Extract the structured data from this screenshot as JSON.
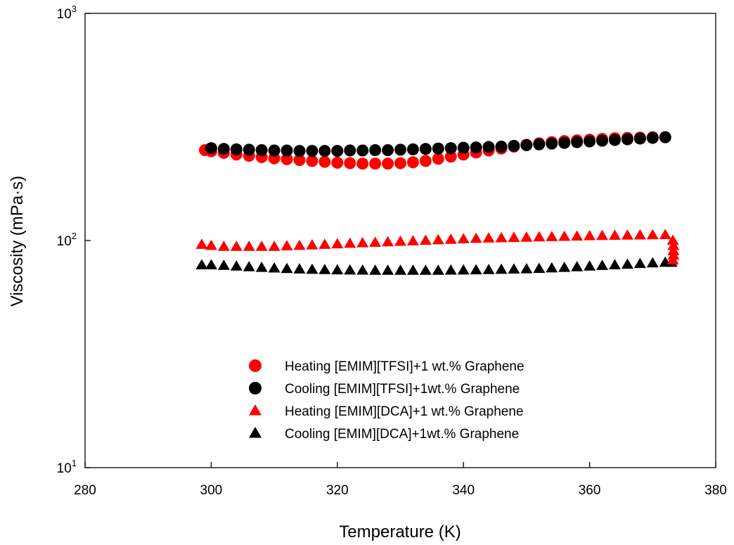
{
  "chart_data": {
    "type": "scatter",
    "xlabel": "Temperature (K)",
    "ylabel": "Viscosity (mPa·s)",
    "xlim": [
      280,
      380
    ],
    "ylim": [
      10,
      1000
    ],
    "y_scale": "log",
    "x_ticks": [
      "280",
      "300",
      "320",
      "340",
      "360",
      "380"
    ],
    "y_ticks": [
      {
        "base": "10",
        "exp": "1"
      },
      {
        "base": "10",
        "exp": "2"
      },
      {
        "base": "10",
        "exp": "3"
      }
    ],
    "grid": false,
    "legend_position": "bottom-center",
    "series": [
      {
        "name": "Heating [EMIM][TFSI]+1 wt.% Graphene",
        "marker": "circle",
        "color": "#ff0000",
        "x": [
          299,
          300,
          302,
          304,
          306,
          308,
          310,
          312,
          314,
          316,
          318,
          320,
          322,
          324,
          326,
          328,
          330,
          332,
          334,
          336,
          338,
          340,
          342,
          344,
          346,
          348,
          350,
          352,
          354,
          356,
          358,
          360,
          362,
          364,
          366,
          368,
          370,
          372
        ],
        "y": [
          250,
          247,
          243,
          239,
          236,
          233,
          230,
          228,
          226,
          224,
          222,
          220,
          219,
          218,
          218,
          218,
          219,
          221,
          224,
          229,
          234,
          239,
          244,
          249,
          254,
          259,
          264,
          268,
          271,
          274,
          276,
          278,
          280,
          282,
          283,
          284,
          285,
          285
        ]
      },
      {
        "name": "Cooling [EMIM][TFSI]+1wt.% Graphene",
        "marker": "circle",
        "color": "#000000",
        "x": [
          372,
          370,
          368,
          366,
          364,
          362,
          360,
          358,
          356,
          354,
          352,
          350,
          348,
          346,
          344,
          342,
          340,
          338,
          336,
          334,
          332,
          330,
          328,
          326,
          324,
          322,
          320,
          318,
          316,
          314,
          312,
          310,
          308,
          306,
          304,
          302,
          300
        ],
        "y": [
          285,
          283,
          281,
          279,
          277,
          275,
          273,
          271,
          269,
          267,
          265,
          263,
          261,
          259,
          258,
          257,
          256,
          255,
          254,
          253,
          252,
          251,
          250,
          250,
          249,
          249,
          248,
          248,
          248,
          248,
          249,
          249,
          250,
          251,
          252,
          253,
          255
        ]
      },
      {
        "name": "Heating [EMIM][DCA]+1 wt.% Graphene",
        "marker": "triangle",
        "color": "#ff0000",
        "x": [
          298.5,
          300,
          302,
          304,
          306,
          308,
          310,
          312,
          314,
          316,
          318,
          320,
          322,
          324,
          326,
          328,
          330,
          332,
          334,
          336,
          338,
          340,
          342,
          344,
          346,
          348,
          350,
          352,
          354,
          356,
          358,
          360,
          362,
          364,
          366,
          368,
          370,
          372
        ],
        "y": [
          96,
          95,
          94,
          94,
          94,
          94,
          94,
          94.5,
          95,
          95.5,
          96,
          96.5,
          97,
          97.5,
          98,
          98.5,
          99,
          99.5,
          100,
          100.5,
          101,
          101.5,
          102,
          102.3,
          102.6,
          102.9,
          103.2,
          103.5,
          103.8,
          104.1,
          104.4,
          104.7,
          105,
          105.2,
          105.4,
          105.6,
          105.8,
          106
        ]
      },
      {
        "name": "Cooling [EMIM][DCA]+1wt.% Graphene",
        "marker": "triangle",
        "color": "#000000",
        "x": [
          373,
          372,
          370,
          368,
          366,
          364,
          362,
          360,
          358,
          356,
          354,
          352,
          350,
          348,
          346,
          344,
          342,
          340,
          338,
          336,
          334,
          332,
          330,
          328,
          326,
          324,
          322,
          320,
          318,
          316,
          314,
          312,
          310,
          308,
          306,
          304,
          302,
          300,
          298.5
        ],
        "y": [
          80,
          80,
          79.5,
          79,
          78.5,
          78,
          77.5,
          77,
          76.5,
          76,
          75.6,
          75.2,
          74.9,
          74.7,
          74.5,
          74.3,
          74.1,
          74,
          73.9,
          73.8,
          73.8,
          73.8,
          73.8,
          73.8,
          73.8,
          73.9,
          74,
          74.1,
          74.3,
          74.5,
          74.8,
          75.1,
          75.5,
          76,
          76.5,
          77,
          77.6,
          78,
          78
        ]
      },
      {
        "name": "",
        "marker": "triangle",
        "color": "#ff0000",
        "x": [
          373.2,
          373.3,
          373.3,
          373.3,
          373.2
        ],
        "y": [
          100,
          95,
          90,
          86,
          82
        ]
      }
    ]
  }
}
